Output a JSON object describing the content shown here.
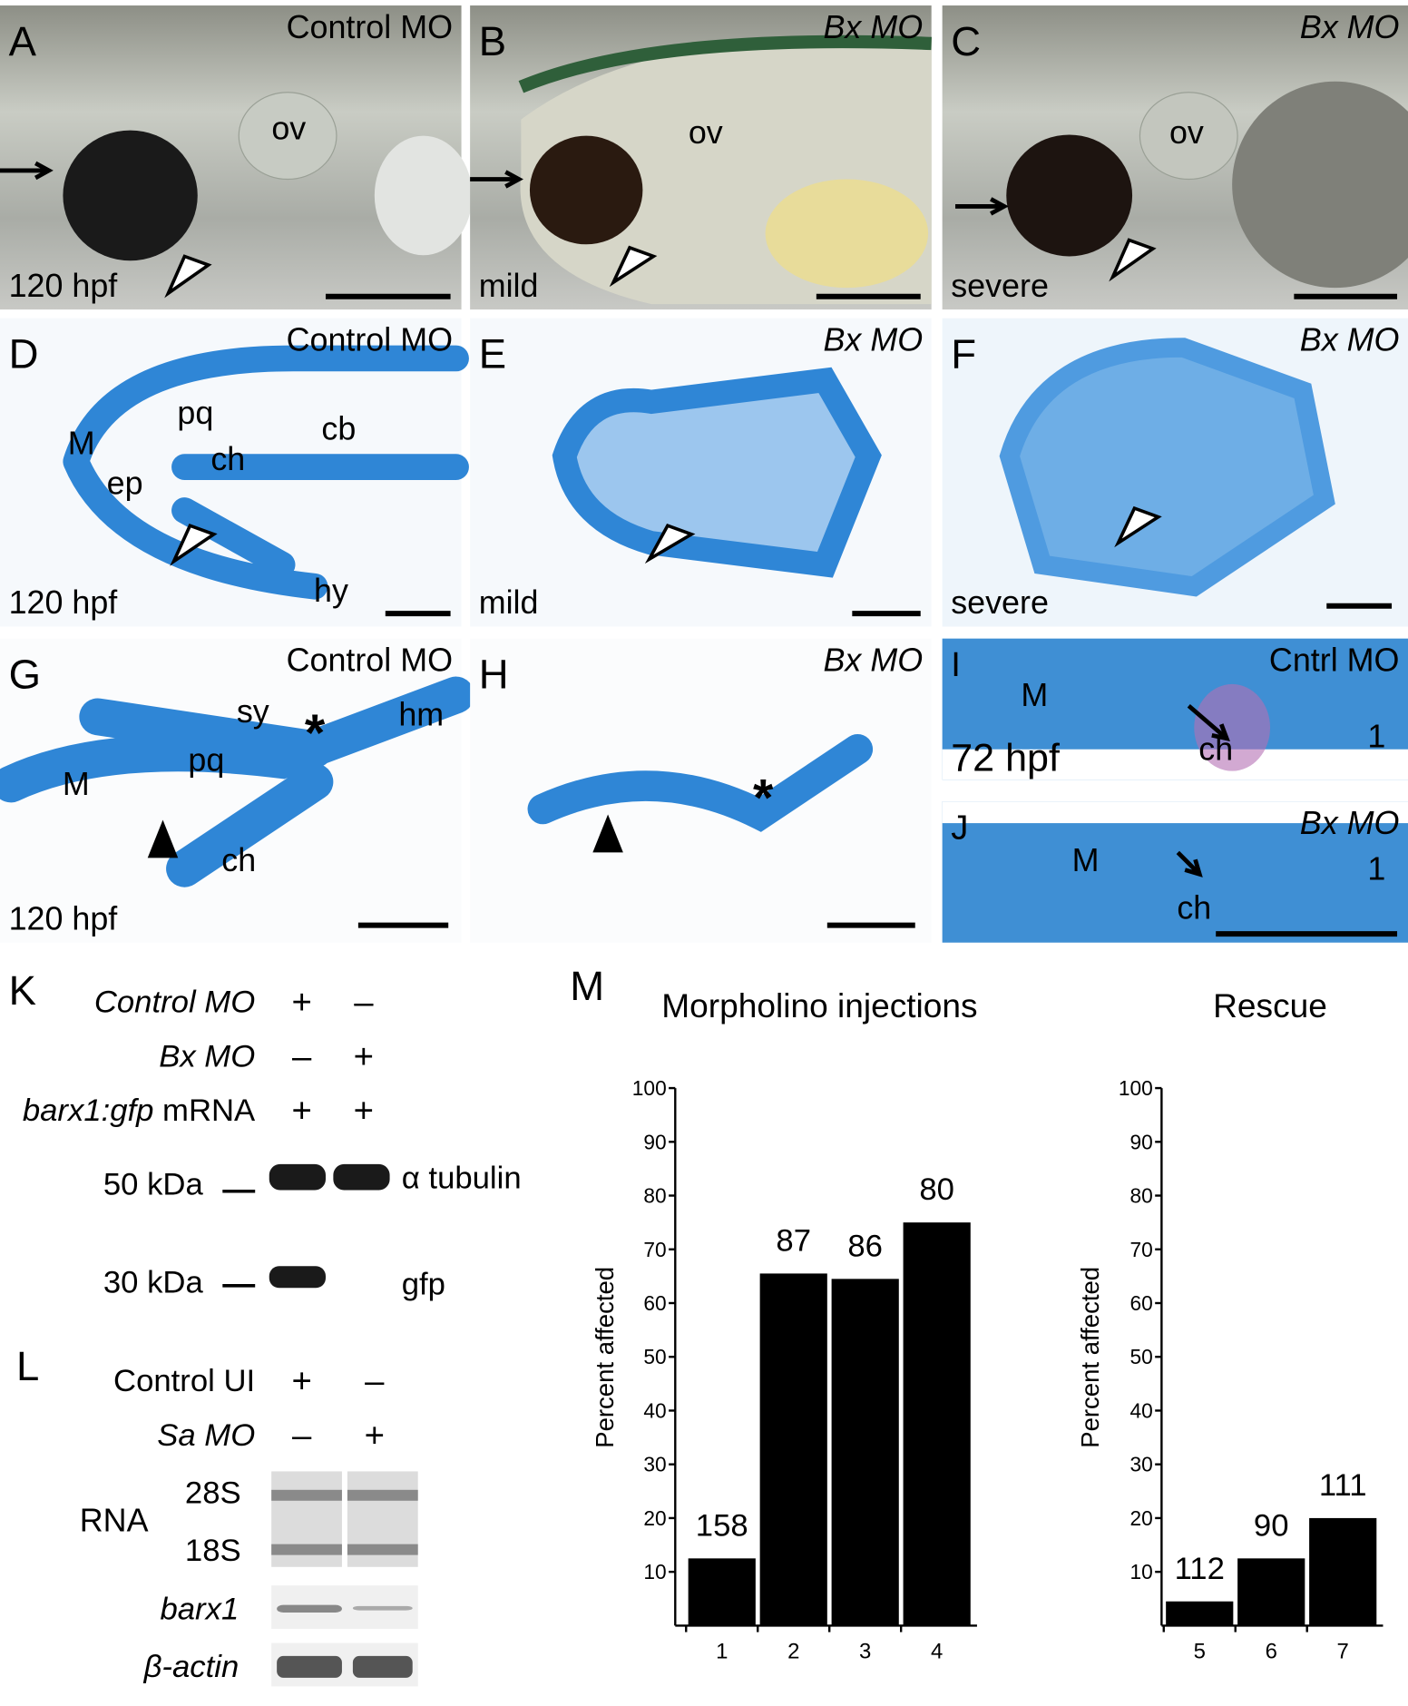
{
  "panels": [
    {
      "letter": "A",
      "title": "Control MO",
      "note": "120 hpf",
      "labels": [
        "ov"
      ]
    },
    {
      "letter": "B",
      "title": "Bx MO",
      "title_italic": true,
      "note": "mild",
      "labels": [
        "ov"
      ]
    },
    {
      "letter": "C",
      "title": "Bx MO",
      "title_italic": true,
      "note": "severe",
      "labels": [
        "ov"
      ]
    },
    {
      "letter": "D",
      "title": "Control MO",
      "note": "120 hpf",
      "labels": [
        "M",
        "pq",
        "ep",
        "ch",
        "cb",
        "hy"
      ]
    },
    {
      "letter": "E",
      "title": "Bx MO",
      "title_italic": true,
      "note": "mild",
      "labels": []
    },
    {
      "letter": "F",
      "title": "Bx MO",
      "title_italic": true,
      "note": "severe",
      "labels": []
    },
    {
      "letter": "G",
      "title": "Control MO",
      "note": "120 hpf",
      "labels": [
        "sy",
        "hm",
        "pq",
        "M",
        "ch",
        "*"
      ]
    },
    {
      "letter": "H",
      "title": "Bx MO",
      "title_italic": true,
      "labels": [
        "*"
      ]
    },
    {
      "letter": "I",
      "title": "Cntrl MO",
      "note": "72 hpf",
      "labels": [
        "M",
        "ch",
        "1"
      ]
    },
    {
      "letter": "J",
      "title": "Bx MO",
      "title_italic": true,
      "labels": [
        "M",
        "ch",
        "1"
      ]
    }
  ],
  "blot_k": {
    "letter": "K",
    "rows": [
      {
        "parts": [
          {
            "text": "Control MO",
            "italic": true
          }
        ],
        "signs": [
          "+",
          "–"
        ]
      },
      {
        "parts": [
          {
            "text": "Bx MO",
            "italic": true
          }
        ],
        "signs": [
          "–",
          "+"
        ]
      },
      {
        "parts": [
          {
            "text": "barx1:gfp",
            "italic": true
          },
          {
            "text": "mRNA"
          }
        ],
        "signs": [
          "+",
          "+"
        ]
      }
    ],
    "markers": [
      "50 kDa",
      "30 kDa"
    ],
    "bands": [
      "α tubulin",
      "gfp"
    ]
  },
  "blot_l": {
    "letter": "L",
    "rows": [
      {
        "parts": [
          {
            "text": "Control UI"
          }
        ],
        "signs": [
          "+",
          "–"
        ]
      },
      {
        "parts": [
          {
            "text": "Sa MO",
            "italic": true
          }
        ],
        "signs": [
          "–",
          "+"
        ]
      }
    ],
    "gel_label": "RNA",
    "gel_bands": [
      "28S",
      "18S"
    ],
    "genes": [
      {
        "text": "barx1",
        "italic": true
      },
      {
        "text": "β-actin",
        "italic": true
      }
    ]
  },
  "panel_m_letter": "M",
  "chart_data": [
    {
      "type": "bar",
      "title": "Morpholino injections",
      "ylabel": "Percent affected",
      "categories": [
        "1",
        "2",
        "3",
        "4"
      ],
      "values": [
        12.5,
        65.5,
        64.5,
        75
      ],
      "bar_labels": [
        158,
        87,
        86,
        80
      ],
      "color": "#000000",
      "ylim": [
        0,
        100
      ],
      "yticks": [
        10,
        20,
        30,
        40,
        50,
        60,
        70,
        80,
        90,
        100
      ]
    },
    {
      "type": "bar",
      "title": "Rescue",
      "ylabel": "Percent affected",
      "categories": [
        "5",
        "6",
        "7"
      ],
      "values": [
        4.5,
        12.5,
        20
      ],
      "bar_labels": [
        112,
        90,
        111
      ],
      "color": "#000000",
      "ylim": [
        0,
        100
      ],
      "yticks": [
        10,
        20,
        30,
        40,
        50,
        60,
        70,
        80,
        90,
        100
      ]
    }
  ]
}
